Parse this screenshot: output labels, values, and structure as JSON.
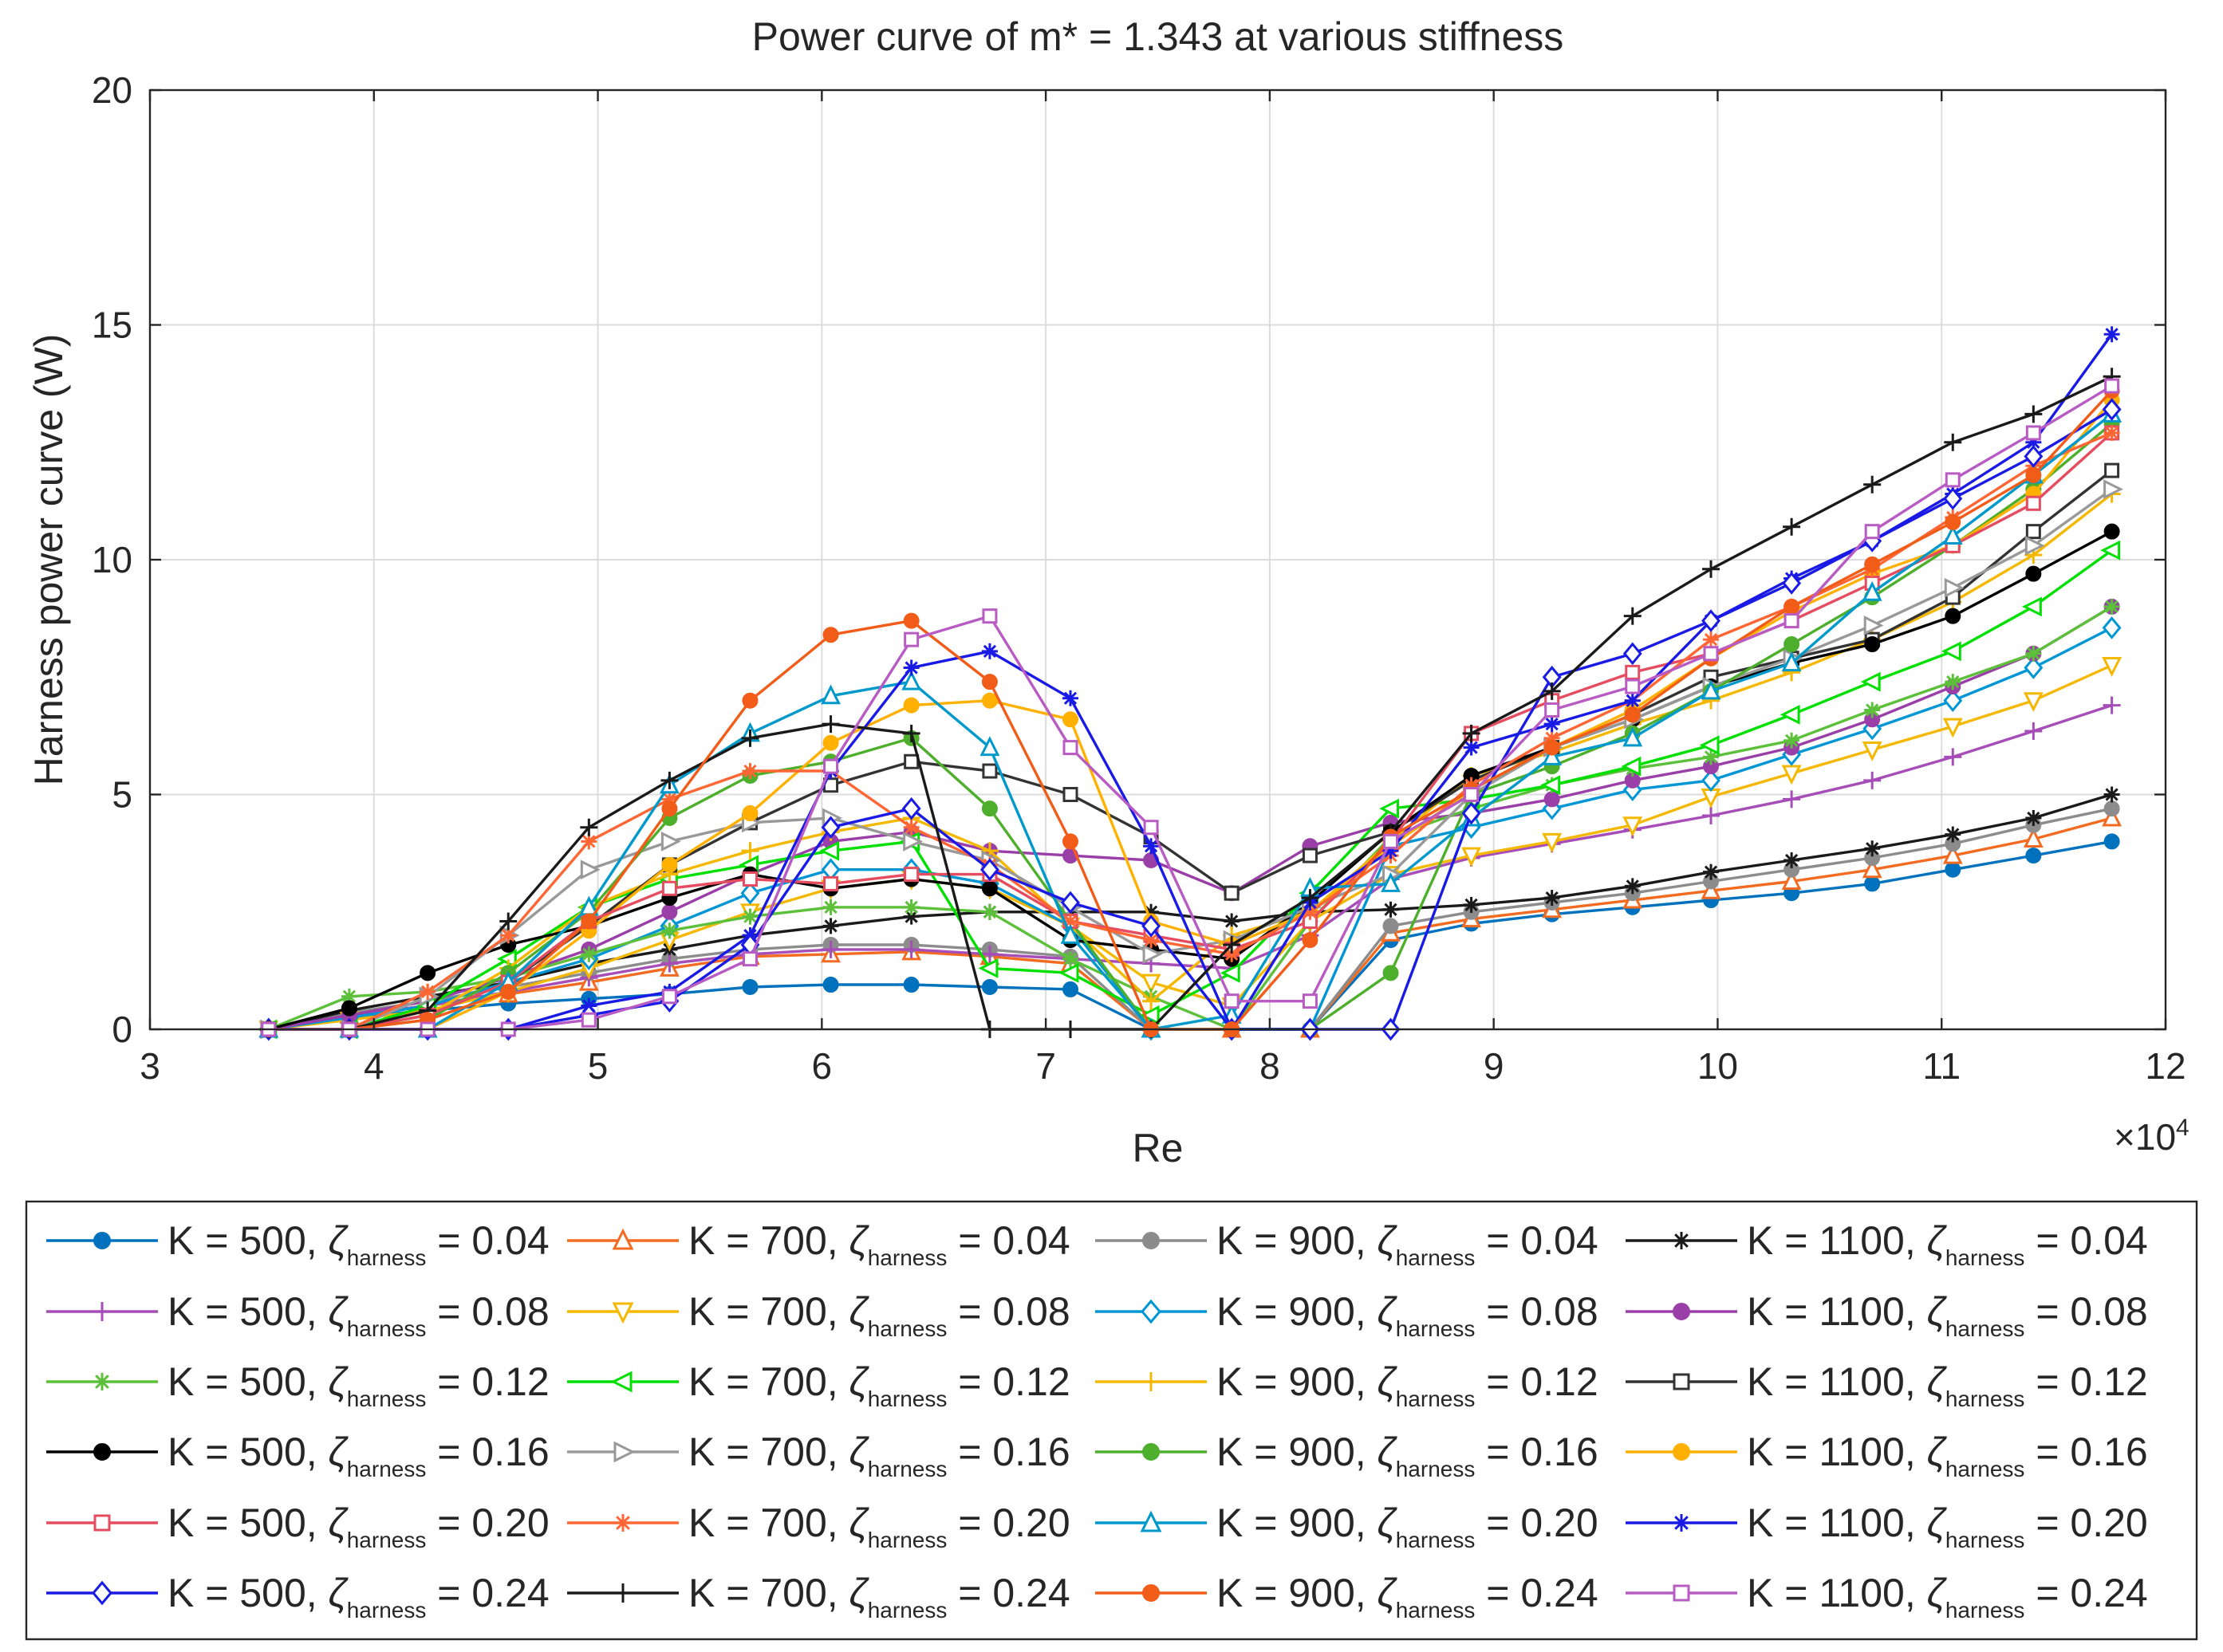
{
  "chart_data": {
    "type": "line",
    "title": "Power curve of m* = 1.343 at various stiffness",
    "xlabel": "Re",
    "ylabel": "Harness power curve (W)",
    "x_exponent_label": "×10",
    "x_exponent_power": "4",
    "xlim": [
      3,
      12
    ],
    "ylim": [
      0,
      20
    ],
    "xticks": [
      3,
      4,
      5,
      6,
      7,
      8,
      9,
      10,
      11,
      12
    ],
    "yticks": [
      0,
      5,
      10,
      15,
      20
    ],
    "grid": true,
    "legend_position": "bottom",
    "x_unit_note": "x values in units of 10^4",
    "x": [
      3.53,
      3.89,
      4.24,
      4.6,
      4.96,
      5.32,
      5.68,
      6.04,
      6.4,
      6.75,
      7.11,
      7.47,
      7.83,
      8.18,
      8.54,
      8.9,
      9.26,
      9.62,
      9.97,
      10.33,
      10.69,
      11.05,
      11.41,
      11.76
    ],
    "zeta_symbol": "ζ",
    "zeta_subscript": "harness",
    "series": [
      {
        "name": "K = 500, ζharness = 0.04",
        "k": "K = 500",
        "zeta": "= 0.04",
        "color": "#0072BD",
        "marker": "circle-filled",
        "values": [
          0,
          0.25,
          0.4,
          0.55,
          0.65,
          0.75,
          0.9,
          0.95,
          0.95,
          0.9,
          0.85,
          0,
          0,
          0,
          1.9,
          2.25,
          2.45,
          2.6,
          2.75,
          2.9,
          3.1,
          3.4,
          3.7,
          4.0
        ]
      },
      {
        "name": "K = 700, ζharness = 0.04",
        "k": "K = 700",
        "zeta": "= 0.04",
        "color": "#F26B21",
        "marker": "triangle-up-open",
        "values": [
          0,
          0.3,
          0.5,
          0.75,
          1.0,
          1.3,
          1.55,
          1.6,
          1.65,
          1.55,
          1.4,
          0,
          0,
          0,
          2.05,
          2.35,
          2.55,
          2.75,
          2.95,
          3.15,
          3.4,
          3.7,
          4.05,
          4.5
        ]
      },
      {
        "name": "K = 900, ζharness = 0.04",
        "k": "K = 900",
        "zeta": "= 0.04",
        "color": "#8C8C8C",
        "marker": "circle-filled",
        "values": [
          0,
          0.35,
          0.6,
          0.9,
          1.2,
          1.5,
          1.7,
          1.8,
          1.8,
          1.7,
          1.55,
          0,
          0,
          0,
          2.2,
          2.5,
          2.7,
          2.9,
          3.15,
          3.4,
          3.65,
          3.95,
          4.35,
          4.7
        ]
      },
      {
        "name": "K = 1100, ζharness = 0.04",
        "k": "K = 1100",
        "zeta": "= 0.04",
        "color": "#1A1A1A",
        "marker": "star",
        "values": [
          0,
          0.4,
          0.7,
          1.0,
          1.4,
          1.7,
          2.0,
          2.2,
          2.4,
          2.5,
          2.5,
          2.5,
          2.3,
          2.5,
          2.55,
          2.65,
          2.8,
          3.05,
          3.35,
          3.6,
          3.85,
          4.15,
          4.5,
          5.0
        ]
      },
      {
        "name": "K = 500, ζharness = 0.08",
        "k": "K = 500",
        "zeta": "= 0.08",
        "color": "#A64DB8",
        "marker": "plus",
        "values": [
          0,
          0.3,
          0.5,
          0.8,
          1.1,
          1.4,
          1.6,
          1.7,
          1.7,
          1.6,
          1.5,
          1.4,
          1.3,
          2.0,
          3.2,
          3.65,
          3.95,
          4.25,
          4.55,
          4.9,
          5.3,
          5.8,
          6.35,
          6.9
        ]
      },
      {
        "name": "K = 700, ζharness = 0.08",
        "k": "K = 700",
        "zeta": "= 0.08",
        "color": "#F5B800",
        "marker": "triangle-down-open",
        "values": [
          0,
          0.2,
          0.4,
          0.8,
          1.3,
          1.9,
          2.5,
          3.0,
          3.2,
          3.0,
          2.2,
          1.0,
          0.5,
          2.3,
          3.3,
          3.7,
          4.0,
          4.35,
          4.95,
          5.45,
          5.95,
          6.45,
          7.0,
          7.75
        ]
      },
      {
        "name": "K = 900, ζharness = 0.08",
        "k": "K = 900",
        "zeta": "= 0.08",
        "color": "#0096D6",
        "marker": "diamond-open",
        "values": [
          0,
          0.25,
          0.5,
          1.0,
          1.5,
          2.2,
          2.9,
          3.4,
          3.4,
          3.1,
          2.2,
          0,
          0,
          0,
          3.9,
          4.3,
          4.7,
          5.1,
          5.3,
          5.85,
          6.4,
          7.0,
          7.7,
          8.55
        ]
      },
      {
        "name": "K = 1100, ζharness = 0.08",
        "k": "K = 1100",
        "zeta": "= 0.08",
        "color": "#9B3FA8",
        "marker": "circle-filled",
        "values": [
          0,
          0.3,
          0.6,
          1.1,
          1.7,
          2.5,
          3.3,
          4.0,
          4.2,
          3.8,
          3.7,
          3.6,
          2.9,
          3.9,
          4.4,
          4.6,
          4.9,
          5.3,
          5.6,
          6.0,
          6.6,
          7.3,
          8.0,
          9.0
        ]
      },
      {
        "name": "K = 500, ζharness = 0.12",
        "k": "K = 500",
        "zeta": "= 0.12",
        "color": "#5CC03A",
        "marker": "star",
        "values": [
          0,
          0.7,
          0.8,
          1.1,
          1.6,
          2.1,
          2.4,
          2.6,
          2.6,
          2.5,
          1.5,
          0.7,
          0,
          2.3,
          4.1,
          4.7,
          5.2,
          5.55,
          5.8,
          6.15,
          6.8,
          7.4,
          8.0,
          9.0
        ]
      },
      {
        "name": "K = 700, ζharness = 0.12",
        "k": "K = 700",
        "zeta": "= 0.12",
        "color": "#00E000",
        "marker": "triangle-left-open",
        "values": [
          0,
          0,
          0.5,
          1.5,
          2.6,
          3.2,
          3.5,
          3.8,
          4.0,
          1.3,
          1.2,
          0.3,
          1.2,
          2.9,
          4.7,
          4.9,
          5.2,
          5.6,
          6.05,
          6.7,
          7.4,
          8.05,
          9.0,
          10.2
        ]
      },
      {
        "name": "K = 900, ζharness = 0.12",
        "k": "K = 900",
        "zeta": "= 0.12",
        "color": "#F5B800",
        "marker": "plus",
        "values": [
          0,
          0,
          0.3,
          1.3,
          2.6,
          3.3,
          3.8,
          4.2,
          4.5,
          3.8,
          2.2,
          0.6,
          2.0,
          2.5,
          4.0,
          5.4,
          5.9,
          6.5,
          7.0,
          7.6,
          8.3,
          9.1,
          10.1,
          11.4
        ]
      },
      {
        "name": "K = 1100, ζharness = 0.12",
        "k": "K = 1100",
        "zeta": "= 0.12",
        "color": "#333333",
        "marker": "square-open",
        "values": [
          0,
          0,
          0.3,
          1.0,
          2.2,
          3.5,
          4.4,
          5.2,
          5.7,
          5.5,
          5.0,
          4.1,
          2.9,
          3.7,
          4.2,
          5.3,
          6.0,
          6.7,
          7.5,
          7.9,
          8.3,
          9.2,
          10.6,
          11.9
        ]
      },
      {
        "name": "K = 500, ζharness = 0.16",
        "k": "K = 500",
        "zeta": "= 0.16",
        "color": "#000000",
        "marker": "circle-filled",
        "values": [
          0,
          0.45,
          1.2,
          1.8,
          2.2,
          2.8,
          3.3,
          3.0,
          3.2,
          3.0,
          1.9,
          1.7,
          1.5,
          2.7,
          4.2,
          5.4,
          6.0,
          6.6,
          7.3,
          7.8,
          8.2,
          8.8,
          9.7,
          10.6
        ]
      },
      {
        "name": "K = 700, ζharness = 0.16",
        "k": "K = 700",
        "zeta": "= 0.16",
        "color": "#999999",
        "marker": "triangle-right-open",
        "values": [
          0,
          0,
          0.7,
          2.0,
          3.4,
          4.0,
          4.4,
          4.5,
          4.0,
          3.6,
          2.6,
          1.6,
          1.9,
          2.6,
          3.3,
          5.0,
          6.0,
          6.6,
          7.3,
          7.9,
          8.6,
          9.4,
          10.3,
          11.5
        ]
      },
      {
        "name": "K = 900, ζharness = 0.16",
        "k": "K = 900",
        "zeta": "= 0.16",
        "color": "#4DAF2C",
        "marker": "circle-filled",
        "values": [
          0,
          0,
          0.2,
          1.2,
          2.5,
          4.5,
          5.4,
          5.7,
          6.2,
          4.7,
          2.3,
          0,
          0,
          0,
          1.2,
          5.0,
          5.6,
          6.3,
          7.2,
          8.2,
          9.2,
          10.3,
          11.5,
          12.9
        ]
      },
      {
        "name": "K = 1100, ζharness = 0.16",
        "k": "K = 1100",
        "zeta": "= 0.16",
        "color": "#FFB000",
        "marker": "circle-filled",
        "values": [
          0,
          0,
          0,
          0.8,
          2.1,
          3.5,
          4.6,
          6.1,
          6.9,
          7.0,
          6.6,
          2.3,
          1.8,
          2.5,
          3.9,
          5.1,
          6.0,
          6.8,
          7.9,
          8.9,
          9.7,
          10.3,
          11.4,
          13.4
        ]
      },
      {
        "name": "K = 500, ζharness = 0.20",
        "k": "K = 500",
        "zeta": "= 0.20",
        "color": "#E64C60",
        "marker": "square-open",
        "values": [
          0,
          0,
          0.3,
          1.0,
          2.3,
          3.0,
          3.2,
          3.1,
          3.3,
          3.3,
          2.3,
          2.0,
          1.7,
          2.3,
          4.0,
          6.3,
          7.0,
          7.6,
          8.0,
          8.7,
          9.5,
          10.3,
          11.2,
          12.7
        ]
      },
      {
        "name": "K = 700, ζharness = 0.20",
        "k": "K = 700",
        "zeta": "= 0.20",
        "color": "#FF6633",
        "marker": "star",
        "values": [
          0,
          0,
          0.8,
          2.0,
          4.0,
          4.9,
          5.5,
          5.5,
          4.3,
          3.5,
          2.3,
          1.9,
          1.6,
          2.5,
          3.7,
          5.2,
          6.2,
          7.0,
          8.3,
          9.0,
          9.8,
          10.9,
          12.0,
          12.7
        ]
      },
      {
        "name": "K = 900, ζharness = 0.20",
        "k": "K = 900",
        "zeta": "= 0.20",
        "color": "#0099CC",
        "marker": "triangle-up-open",
        "values": [
          0,
          0,
          0,
          1.0,
          2.6,
          5.2,
          6.3,
          7.1,
          7.4,
          6.0,
          2.0,
          0,
          0.3,
          3.0,
          3.1,
          4.5,
          5.8,
          6.2,
          7.2,
          7.8,
          9.3,
          10.5,
          11.8,
          13.1
        ]
      },
      {
        "name": "K = 1100, ζharness = 0.20",
        "k": "K = 1100",
        "zeta": "= 0.20",
        "color": "#1A1AE6",
        "marker": "star",
        "values": [
          0,
          0,
          0,
          0,
          0.5,
          0.8,
          2.0,
          5.5,
          7.7,
          8.05,
          7.05,
          3.9,
          0,
          2.7,
          3.8,
          6.0,
          6.5,
          7.0,
          8.7,
          9.6,
          10.4,
          11.4,
          12.5,
          14.8
        ]
      },
      {
        "name": "K = 500, ζharness = 0.24",
        "k": "K = 500",
        "zeta": "= 0.24",
        "color": "#1A1AE6",
        "marker": "diamond-open",
        "values": [
          0,
          0,
          0,
          0,
          0.3,
          0.6,
          1.8,
          4.3,
          4.7,
          3.4,
          2.7,
          2.2,
          0,
          0,
          0,
          4.6,
          7.5,
          8.0,
          8.7,
          9.5,
          10.4,
          11.3,
          12.2,
          13.2
        ]
      },
      {
        "name": "K = 700, ζharness = 0.24",
        "k": "K = 700",
        "zeta": "= 0.24",
        "color": "#1A1A1A",
        "marker": "plus",
        "values": [
          0,
          0,
          0.4,
          2.3,
          4.3,
          5.3,
          6.2,
          6.5,
          6.3,
          0,
          0,
          0,
          1.8,
          2.8,
          4.2,
          6.3,
          7.2,
          8.8,
          9.8,
          10.7,
          11.6,
          12.5,
          13.1,
          13.9
        ]
      },
      {
        "name": "K = 900, ζharness = 0.24",
        "k": "K = 900",
        "zeta": "= 0.24",
        "color": "#F25C19",
        "marker": "circle-filled",
        "values": [
          0,
          0,
          0.2,
          0.8,
          2.3,
          4.7,
          7.0,
          8.4,
          8.7,
          7.4,
          4.0,
          0,
          0,
          1.9,
          4.1,
          5.1,
          6.0,
          6.7,
          7.9,
          9.0,
          9.9,
          10.8,
          11.8,
          13.6
        ]
      },
      {
        "name": "K = 1100, ζharness = 0.24",
        "k": "K = 1100",
        "zeta": "= 0.24",
        "color": "#B85CC4",
        "marker": "square-open",
        "values": [
          0,
          0,
          0,
          0,
          0.2,
          0.7,
          1.5,
          5.6,
          8.3,
          8.8,
          6.0,
          4.3,
          0.6,
          0.6,
          4.0,
          5.0,
          6.8,
          7.3,
          8.0,
          8.7,
          10.6,
          11.7,
          12.7,
          13.7
        ]
      }
    ]
  }
}
